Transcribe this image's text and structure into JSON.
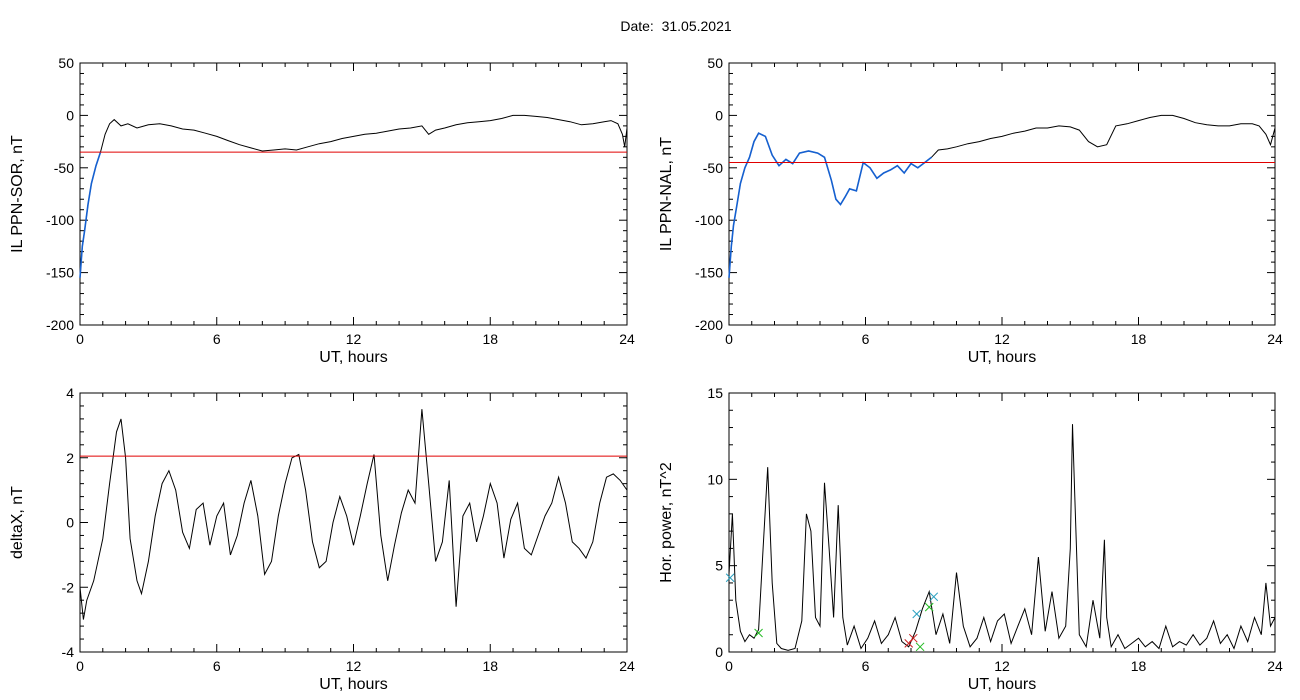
{
  "figure": {
    "title_label": "Date:",
    "title_value": "31.05.2021"
  },
  "colors": {
    "axes": "#000000",
    "threshold": "#e00000",
    "highlight": "#1560d0",
    "marker_green": "#22bb22",
    "marker_red": "#cc2222",
    "marker_blue": "#2aa0c0"
  },
  "chart_data": [
    {
      "type": "line",
      "ylabel": "IL PPN-SOR, nT",
      "xlabel": "UT, hours",
      "xlim": [
        0,
        24
      ],
      "ylim": [
        -200,
        50
      ],
      "x_ticks": [
        0,
        6,
        12,
        18,
        24
      ],
      "y_ticks": [
        50,
        0,
        -50,
        -100,
        -150,
        -200
      ],
      "threshold": -35,
      "highlight_range": [
        0,
        0.9
      ],
      "series": [
        {
          "x": [
            0,
            0.1,
            0.2,
            0.35,
            0.5,
            0.7,
            0.9,
            1.1,
            1.3,
            1.5,
            1.8,
            2.1,
            2.5,
            3.0,
            3.5,
            4.0,
            4.5,
            5.0,
            5.5,
            6.0,
            6.5,
            7.0,
            7.5,
            8.0,
            8.5,
            9.0,
            9.5,
            10.0,
            10.5,
            11.0,
            11.5,
            12.0,
            12.5,
            13.0,
            13.5,
            14.0,
            14.5,
            15.0,
            15.3,
            15.6,
            16.0,
            16.5,
            17.0,
            17.5,
            18.0,
            18.5,
            19.0,
            19.5,
            20.0,
            20.5,
            21.0,
            21.5,
            22.0,
            22.5,
            23.0,
            23.3,
            23.6,
            23.8,
            23.9,
            24.0
          ],
          "y": [
            -155,
            -125,
            -110,
            -85,
            -65,
            -48,
            -35,
            -18,
            -8,
            -4,
            -10,
            -8,
            -12,
            -9,
            -8,
            -10,
            -13,
            -14,
            -17,
            -20,
            -24,
            -28,
            -31,
            -34,
            -33,
            -32,
            -33,
            -30,
            -27,
            -25,
            -22,
            -20,
            -18,
            -17,
            -15,
            -13,
            -12,
            -10,
            -18,
            -14,
            -12,
            -9,
            -7,
            -6,
            -5,
            -3,
            0,
            0,
            -1,
            -2,
            -4,
            -6,
            -9,
            -8,
            -6,
            -5,
            -8,
            -18,
            -30,
            -12
          ]
        }
      ]
    },
    {
      "type": "line",
      "ylabel": "IL PPN-NAL, nT",
      "xlabel": "UT, hours",
      "xlim": [
        0,
        24
      ],
      "ylim": [
        -200,
        50
      ],
      "x_ticks": [
        0,
        6,
        12,
        18,
        24
      ],
      "y_ticks": [
        50,
        0,
        -50,
        -100,
        -150,
        -200
      ],
      "threshold": -45,
      "highlight_range": [
        0,
        9
      ],
      "series": [
        {
          "x": [
            0,
            0.1,
            0.2,
            0.35,
            0.5,
            0.7,
            0.9,
            1.1,
            1.3,
            1.6,
            1.9,
            2.2,
            2.5,
            2.8,
            3.1,
            3.5,
            3.9,
            4.2,
            4.5,
            4.7,
            4.9,
            5.1,
            5.3,
            5.6,
            5.9,
            6.2,
            6.5,
            6.8,
            7.1,
            7.4,
            7.7,
            8.0,
            8.3,
            8.6,
            8.9,
            9.2,
            9.6,
            10.0,
            10.5,
            11.0,
            11.5,
            12.0,
            12.5,
            13.0,
            13.5,
            14.0,
            14.5,
            15.0,
            15.4,
            15.8,
            16.2,
            16.6,
            17.0,
            17.5,
            18.0,
            18.5,
            19.0,
            19.5,
            20.0,
            20.5,
            21.0,
            21.5,
            22.0,
            22.5,
            23.0,
            23.3,
            23.6,
            23.8,
            24.0
          ],
          "y": [
            -155,
            -125,
            -105,
            -85,
            -65,
            -50,
            -40,
            -25,
            -17,
            -20,
            -38,
            -48,
            -42,
            -46,
            -36,
            -34,
            -36,
            -40,
            -62,
            -80,
            -85,
            -78,
            -70,
            -72,
            -45,
            -50,
            -60,
            -55,
            -52,
            -48,
            -55,
            -46,
            -50,
            -45,
            -40,
            -33,
            -32,
            -30,
            -27,
            -25,
            -22,
            -20,
            -17,
            -15,
            -12,
            -12,
            -10,
            -11,
            -14,
            -25,
            -30,
            -28,
            -10,
            -8,
            -5,
            -2,
            0,
            0,
            -3,
            -7,
            -9,
            -10,
            -10,
            -8,
            -8,
            -10,
            -18,
            -28,
            -12
          ]
        }
      ]
    },
    {
      "type": "line",
      "ylabel": "deltaX, nT",
      "xlabel": "UT, hours",
      "xlim": [
        0,
        24
      ],
      "ylim": [
        -4,
        4
      ],
      "x_ticks": [
        0,
        6,
        12,
        18,
        24
      ],
      "y_ticks": [
        4,
        2,
        0,
        -2,
        -4
      ],
      "threshold": 2.05,
      "series": [
        {
          "x": [
            0,
            0.15,
            0.3,
            0.6,
            1.0,
            1.3,
            1.6,
            1.8,
            2.0,
            2.2,
            2.5,
            2.7,
            3.0,
            3.3,
            3.6,
            3.9,
            4.2,
            4.5,
            4.8,
            5.1,
            5.4,
            5.7,
            6.0,
            6.3,
            6.6,
            6.9,
            7.2,
            7.5,
            7.8,
            8.1,
            8.4,
            8.7,
            9.0,
            9.3,
            9.6,
            9.9,
            10.2,
            10.5,
            10.8,
            11.1,
            11.4,
            11.7,
            12.0,
            12.3,
            12.6,
            12.9,
            13.2,
            13.5,
            13.8,
            14.1,
            14.4,
            14.7,
            15.0,
            15.3,
            15.6,
            15.9,
            16.2,
            16.5,
            16.8,
            17.1,
            17.4,
            17.7,
            18.0,
            18.3,
            18.6,
            18.9,
            19.2,
            19.5,
            19.8,
            20.1,
            20.4,
            20.7,
            21.0,
            21.3,
            21.6,
            21.9,
            22.2,
            22.5,
            22.8,
            23.1,
            23.4,
            23.7,
            24.0
          ],
          "y": [
            -2.0,
            -3.0,
            -2.4,
            -1.8,
            -0.5,
            1.2,
            2.8,
            3.2,
            2.0,
            -0.5,
            -1.8,
            -2.2,
            -1.2,
            0.2,
            1.2,
            1.6,
            1.0,
            -0.3,
            -0.8,
            0.4,
            0.6,
            -0.7,
            0.2,
            0.6,
            -1.0,
            -0.4,
            0.6,
            1.3,
            0.2,
            -1.6,
            -1.2,
            0.2,
            1.2,
            2.0,
            2.1,
            1.0,
            -0.6,
            -1.4,
            -1.2,
            0.0,
            0.8,
            0.2,
            -0.7,
            0.2,
            1.2,
            2.1,
            -0.4,
            -1.8,
            -0.7,
            0.3,
            1.0,
            0.6,
            3.5,
            1.2,
            -1.2,
            -0.6,
            1.3,
            -2.6,
            0.2,
            0.6,
            -0.6,
            0.2,
            1.2,
            0.6,
            -1.1,
            0.1,
            0.6,
            -0.8,
            -1.0,
            -0.4,
            0.2,
            0.6,
            1.4,
            0.6,
            -0.6,
            -0.8,
            -1.1,
            -0.6,
            0.6,
            1.4,
            1.5,
            1.3,
            1.0
          ]
        }
      ]
    },
    {
      "type": "line",
      "ylabel": "Hor. power, nT^2",
      "xlabel": "UT, hours",
      "xlim": [
        0,
        24
      ],
      "ylim": [
        0,
        15
      ],
      "x_ticks": [
        0,
        6,
        12,
        18,
        24
      ],
      "y_ticks": [
        15,
        10,
        5,
        0
      ],
      "series": [
        {
          "x": [
            0,
            0.15,
            0.3,
            0.5,
            0.7,
            0.9,
            1.1,
            1.3,
            1.5,
            1.7,
            1.9,
            2.1,
            2.3,
            2.6,
            2.9,
            3.2,
            3.4,
            3.6,
            3.8,
            4.0,
            4.2,
            4.4,
            4.6,
            4.8,
            5.0,
            5.2,
            5.5,
            5.8,
            6.1,
            6.4,
            6.7,
            7.0,
            7.3,
            7.6,
            7.9,
            8.2,
            8.5,
            8.8,
            9.1,
            9.4,
            9.7,
            10.0,
            10.3,
            10.6,
            10.9,
            11.2,
            11.5,
            11.8,
            12.1,
            12.4,
            12.7,
            13.0,
            13.3,
            13.6,
            13.9,
            14.2,
            14.5,
            14.8,
            15.0,
            15.1,
            15.2,
            15.4,
            15.7,
            16.0,
            16.3,
            16.5,
            16.6,
            16.8,
            17.1,
            17.4,
            17.7,
            18.0,
            18.3,
            18.6,
            18.9,
            19.2,
            19.5,
            19.8,
            20.1,
            20.4,
            20.7,
            21.0,
            21.3,
            21.6,
            21.9,
            22.2,
            22.5,
            22.8,
            23.1,
            23.4,
            23.6,
            23.8,
            24.0
          ],
          "y": [
            4.5,
            8.0,
            3.0,
            1.2,
            0.6,
            1.0,
            0.8,
            1.3,
            6.0,
            10.7,
            4.0,
            0.5,
            0.2,
            0.1,
            0.2,
            1.8,
            8.0,
            7.0,
            2.0,
            1.5,
            9.8,
            6.0,
            2.0,
            8.5,
            2.0,
            0.4,
            1.5,
            0.2,
            0.8,
            1.8,
            0.5,
            1.0,
            2.0,
            0.6,
            0.3,
            1.2,
            2.5,
            3.5,
            1.0,
            2.2,
            0.5,
            4.6,
            1.5,
            0.3,
            0.8,
            2.0,
            0.6,
            1.8,
            2.2,
            0.5,
            1.5,
            2.5,
            1.0,
            5.5,
            1.2,
            3.5,
            0.8,
            1.5,
            6.0,
            13.2,
            9.0,
            1.0,
            0.3,
            3.0,
            0.8,
            6.5,
            2.0,
            0.3,
            1.0,
            0.2,
            0.5,
            0.8,
            0.3,
            0.6,
            0.2,
            1.5,
            0.3,
            0.6,
            0.4,
            1.0,
            0.4,
            0.8,
            1.8,
            0.5,
            1.0,
            0.2,
            1.5,
            0.6,
            2.0,
            1.0,
            4.0,
            1.5,
            2.0
          ]
        }
      ],
      "markers": [
        {
          "x": 0.05,
          "y": 4.3,
          "color": "marker_blue"
        },
        {
          "x": 1.3,
          "y": 1.1,
          "color": "marker_green"
        },
        {
          "x": 7.9,
          "y": 0.5,
          "color": "marker_red"
        },
        {
          "x": 8.1,
          "y": 0.8,
          "color": "marker_red"
        },
        {
          "x": 8.25,
          "y": 2.2,
          "color": "marker_blue"
        },
        {
          "x": 8.4,
          "y": 0.3,
          "color": "marker_green"
        },
        {
          "x": 8.8,
          "y": 2.6,
          "color": "marker_green"
        },
        {
          "x": 9.0,
          "y": 3.2,
          "color": "marker_blue"
        }
      ]
    }
  ]
}
